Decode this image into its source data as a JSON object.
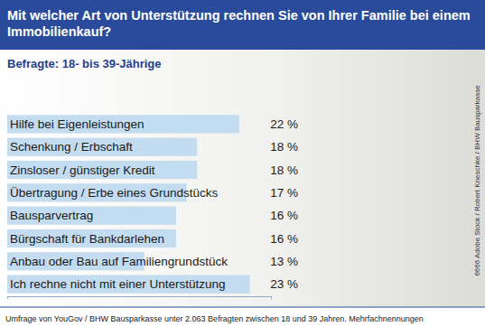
{
  "chart_data": {
    "type": "bar",
    "orientation": "horizontal",
    "title": "Mit welcher Art von Unterstützung rechnen Sie von Ihrer Familie bei einem Immobilienkauf?",
    "subtitle": "Befragte: 18- bis 39-Jährige",
    "categories": [
      "Hilfe bei Eigenleistungen",
      "Schenkung / Erbschaft",
      "Zinsloser / günstiger Kredit",
      "Übertragung / Erbe eines Grundstücks",
      "Bausparvertrag",
      "Bürgschaft für Bankdarlehen",
      "Anbau oder Bau auf Familiengrundstück",
      "Ich rechne nicht mit einer Unterstützung"
    ],
    "values": [
      22,
      18,
      18,
      17,
      16,
      16,
      13,
      23
    ],
    "value_labels": [
      "22 %",
      "18 %",
      "18 %",
      "17 %",
      "16 %",
      "16 %",
      "13 %",
      "23 %"
    ],
    "color": "#c3dcef",
    "xlim": [
      0,
      25
    ],
    "xticks": [
      0,
      25
    ],
    "tick_labels": false,
    "data_labels": true,
    "annotations": [
      "Umfrage von YouGov / BHW Bausparkasse unter 2.063 Befragten zwischen 18 und 39 Jahren. Mehrfachnennungen",
      "6666 Adobe Stock / Robert Kneschke / BHW Bausparkasse"
    ]
  }
}
